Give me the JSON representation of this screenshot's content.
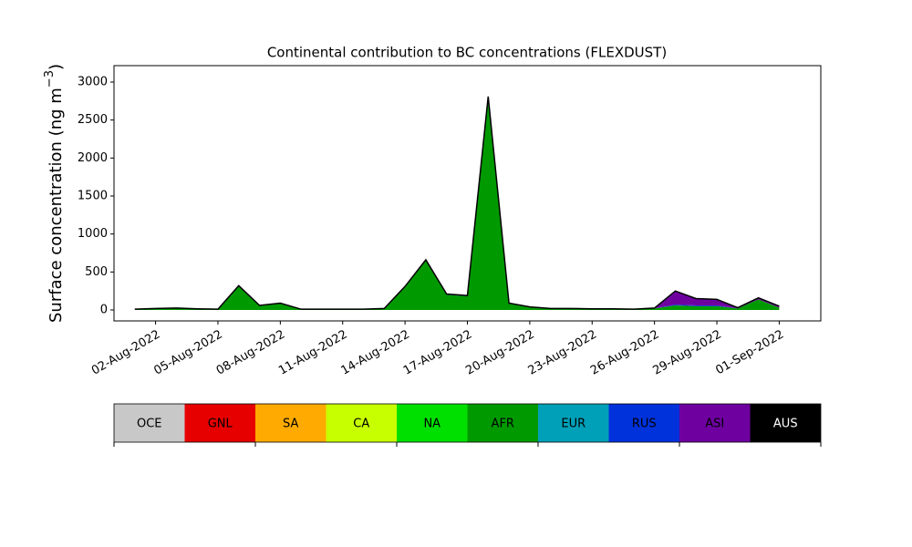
{
  "chart_data": {
    "type": "stacked_area",
    "title": "Continental contribution to BC concentrations (FLEXDUST)",
    "ylabel": [
      "Surface concentration (ng m",
      "−3",
      ")"
    ],
    "x": [
      "2022-08-01",
      "2022-08-02",
      "2022-08-03",
      "2022-08-04",
      "2022-08-05",
      "2022-08-06",
      "2022-08-07",
      "2022-08-08",
      "2022-08-09",
      "2022-08-10",
      "2022-08-11",
      "2022-08-12",
      "2022-08-13",
      "2022-08-14",
      "2022-08-15",
      "2022-08-16",
      "2022-08-17",
      "2022-08-18",
      "2022-08-19",
      "2022-08-20",
      "2022-08-21",
      "2022-08-22",
      "2022-08-23",
      "2022-08-24",
      "2022-08-25",
      "2022-08-26",
      "2022-08-27",
      "2022-08-28",
      "2022-08-29",
      "2022-08-30",
      "2022-08-31",
      "2022-09-01"
    ],
    "xlim": [
      "2022-07-31",
      "2022-09-03"
    ],
    "xticks": [
      {
        "value": "2022-08-02",
        "label": "02-Aug-2022"
      },
      {
        "value": "2022-08-05",
        "label": "05-Aug-2022"
      },
      {
        "value": "2022-08-08",
        "label": "08-Aug-2022"
      },
      {
        "value": "2022-08-11",
        "label": "11-Aug-2022"
      },
      {
        "value": "2022-08-14",
        "label": "14-Aug-2022"
      },
      {
        "value": "2022-08-17",
        "label": "17-Aug-2022"
      },
      {
        "value": "2022-08-20",
        "label": "20-Aug-2022"
      },
      {
        "value": "2022-08-23",
        "label": "23-Aug-2022"
      },
      {
        "value": "2022-08-26",
        "label": "26-Aug-2022"
      },
      {
        "value": "2022-08-29",
        "label": "29-Aug-2022"
      },
      {
        "value": "2022-09-01",
        "label": "01-Sep-2022"
      }
    ],
    "ylim": [
      -144,
      3216
    ],
    "yticks": [
      0,
      500,
      1000,
      1500,
      2000,
      2500,
      3000
    ],
    "series": [
      {
        "name": "OCE",
        "color": "#c8c8c8",
        "values": [
          0,
          0,
          0,
          0,
          0,
          0,
          0,
          0,
          0,
          0,
          0,
          0,
          0,
          0,
          0,
          0,
          0,
          0,
          0,
          0,
          0,
          0,
          0,
          0,
          0,
          0,
          0,
          0,
          0,
          0,
          0,
          0
        ]
      },
      {
        "name": "GNL",
        "color": "#e60000",
        "values": [
          0,
          0,
          0,
          0,
          0,
          0,
          0,
          0,
          0,
          0,
          0,
          0,
          0,
          0,
          0,
          0,
          0,
          0,
          0,
          0,
          0,
          0,
          0,
          0,
          0,
          0,
          0,
          0,
          0,
          0,
          0,
          0
        ]
      },
      {
        "name": "SA",
        "color": "#ffaa00",
        "values": [
          0,
          0,
          0,
          0,
          0,
          0,
          0,
          0,
          0,
          0,
          0,
          0,
          0,
          0,
          0,
          0,
          0,
          0,
          0,
          0,
          0,
          0,
          0,
          0,
          0,
          0,
          0,
          0,
          0,
          0,
          0,
          0
        ]
      },
      {
        "name": "CA",
        "color": "#c8ff00",
        "values": [
          0,
          0,
          0,
          0,
          0,
          0,
          0,
          0,
          0,
          0,
          0,
          0,
          0,
          0,
          0,
          0,
          0,
          0,
          0,
          0,
          0,
          0,
          0,
          0,
          0,
          0,
          0,
          0,
          0,
          0,
          0,
          0
        ]
      },
      {
        "name": "NA",
        "color": "#00e000",
        "values": [
          0,
          0,
          0,
          0,
          0,
          0,
          0,
          0,
          0,
          0,
          0,
          0,
          0,
          0,
          0,
          0,
          0,
          0,
          0,
          0,
          0,
          0,
          0,
          0,
          0,
          0,
          0,
          0,
          0,
          0,
          0,
          0
        ]
      },
      {
        "name": "AFR",
        "color": "#009a00",
        "values": [
          10,
          20,
          25,
          15,
          10,
          320,
          60,
          90,
          10,
          10,
          10,
          10,
          20,
          300,
          650,
          200,
          180,
          2800,
          90,
          40,
          20,
          20,
          15,
          15,
          10,
          20,
          60,
          50,
          50,
          20,
          140,
          30
        ]
      },
      {
        "name": "EUR",
        "color": "#00a0b8",
        "values": [
          0,
          0,
          0,
          0,
          0,
          0,
          0,
          0,
          0,
          0,
          0,
          0,
          0,
          0,
          0,
          0,
          0,
          0,
          0,
          0,
          0,
          0,
          0,
          0,
          0,
          0,
          0,
          0,
          0,
          0,
          0,
          0
        ]
      },
      {
        "name": "RUS",
        "color": "#0032dc",
        "values": [
          0,
          0,
          0,
          0,
          0,
          0,
          0,
          0,
          0,
          0,
          0,
          0,
          0,
          10,
          10,
          10,
          10,
          10,
          0,
          0,
          0,
          0,
          0,
          0,
          0,
          0,
          10,
          10,
          10,
          0,
          0,
          0
        ]
      },
      {
        "name": "ASI",
        "color": "#6e00a0",
        "values": [
          0,
          0,
          0,
          0,
          0,
          0,
          0,
          0,
          0,
          0,
          0,
          0,
          0,
          0,
          0,
          0,
          0,
          0,
          0,
          0,
          0,
          0,
          0,
          0,
          0,
          5,
          180,
          90,
          80,
          10,
          20,
          20
        ]
      },
      {
        "name": "AUS",
        "color": "#000000",
        "values": [
          0,
          0,
          0,
          0,
          0,
          0,
          0,
          0,
          0,
          0,
          0,
          0,
          0,
          0,
          0,
          0,
          0,
          0,
          0,
          0,
          0,
          0,
          0,
          0,
          0,
          0,
          0,
          0,
          0,
          0,
          0,
          0
        ]
      }
    ]
  }
}
